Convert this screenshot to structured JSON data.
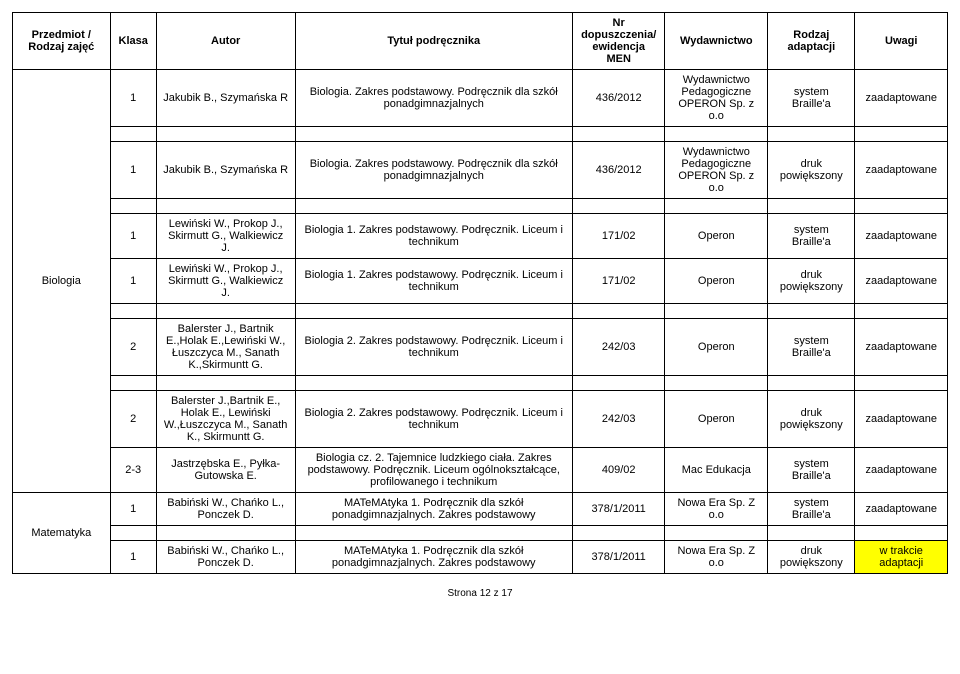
{
  "headers": {
    "subject": "Przedmiot / Rodzaj zajęć",
    "klass": "Klasa",
    "author": "Autor",
    "title": "Tytuł podręcznika",
    "number": "Nr dopuszczenia/ ewidencja MEN",
    "publisher": "Wydawnictwo",
    "adapt": "Rodzaj adaptacji",
    "notes": "Uwagi"
  },
  "subject_biologia": "Biologia",
  "subject_matematyka": "Matematyka",
  "rows": {
    "r1": {
      "klass": "1",
      "author": "Jakubik B., Szymańska R",
      "title": "Biologia. Zakres podstawowy. Podręcznik dla szkół ponadgimnazjalnych",
      "number": "436/2012",
      "publisher": "Wydawnictwo Pedagogiczne OPERON Sp. z o.o",
      "adapt": "system Braille'a",
      "notes": "zaadaptowane"
    },
    "r2": {
      "klass": "1",
      "author": "Jakubik B., Szymańska R",
      "title": "Biologia. Zakres podstawowy. Podręcznik dla szkół ponadgimnazjalnych",
      "number": "436/2012",
      "publisher": "Wydawnictwo Pedagogiczne OPERON Sp. z o.o",
      "adapt": "druk powiększony",
      "notes": "zaadaptowane"
    },
    "r3": {
      "klass": "1",
      "author": "Lewiński W., Prokop J., Skirmutt G., Walkiewicz J.",
      "title": "Biologia 1. Zakres podstawowy. Podręcznik. Liceum i technikum",
      "number": "171/02",
      "publisher": "Operon",
      "adapt": "system Braille'a",
      "notes": "zaadaptowane"
    },
    "r4": {
      "klass": "1",
      "author": "Lewiński W., Prokop J., Skirmutt G., Walkiewicz J.",
      "title": "Biologia 1. Zakres podstawowy. Podręcznik. Liceum i technikum",
      "number": "171/02",
      "publisher": "Operon",
      "adapt": "druk powiększony",
      "notes": "zaadaptowane"
    },
    "r5": {
      "klass": "2",
      "author": "Balerster J., Bartnik E.,Holak E.,Lewiński W., Łuszczyca M., Sanath K.,Skirmuntt G.",
      "title": "Biologia 2. Zakres podstawowy. Podręcznik. Liceum i technikum",
      "number": "242/03",
      "publisher": "Operon",
      "adapt": "system Braille'a",
      "notes": "zaadaptowane"
    },
    "r6": {
      "klass": "2",
      "author": "Balerster J.,Bartnik E., Holak E., Lewiński W.,Łuszczyca M., Sanath K., Skirmuntt G.",
      "title": "Biologia 2. Zakres podstawowy. Podręcznik. Liceum i technikum",
      "number": "242/03",
      "publisher": "Operon",
      "adapt": "druk powiększony",
      "notes": "zaadaptowane"
    },
    "r7": {
      "klass": "2-3",
      "author": "Jastrzębska E., Pyłka-Gutowska E.",
      "title": "Biologia cz. 2. Tajemnice ludzkiego ciała. Zakres podstawowy. Podręcznik. Liceum ogólnokształcące, profilowanego i technikum",
      "number": "409/02",
      "publisher": "Mac Edukacja",
      "adapt": "system Braille'a",
      "notes": "zaadaptowane"
    },
    "m1": {
      "klass": "1",
      "author": "Babiński W., Chańko L., Ponczek D.",
      "title": "MATeMAtyka 1. Podręcznik dla szkół ponadgimnazjalnych. Zakres podstawowy",
      "number": "378/1/2011",
      "publisher": "Nowa Era Sp. Z o.o",
      "adapt": "system Braille'a",
      "notes": "zaadaptowane"
    },
    "m2": {
      "klass": "1",
      "author": "Babiński W., Chańko L., Ponczek D.",
      "title": "MATeMAtyka 1. Podręcznik dla szkół ponadgimnazjalnych. Zakres podstawowy",
      "number": "378/1/2011",
      "publisher": "Nowa Era Sp. Z o.o",
      "adapt": "druk powiększony",
      "notes": "w trakcie adaptacji"
    }
  },
  "footer": "Strona 12 z 17"
}
